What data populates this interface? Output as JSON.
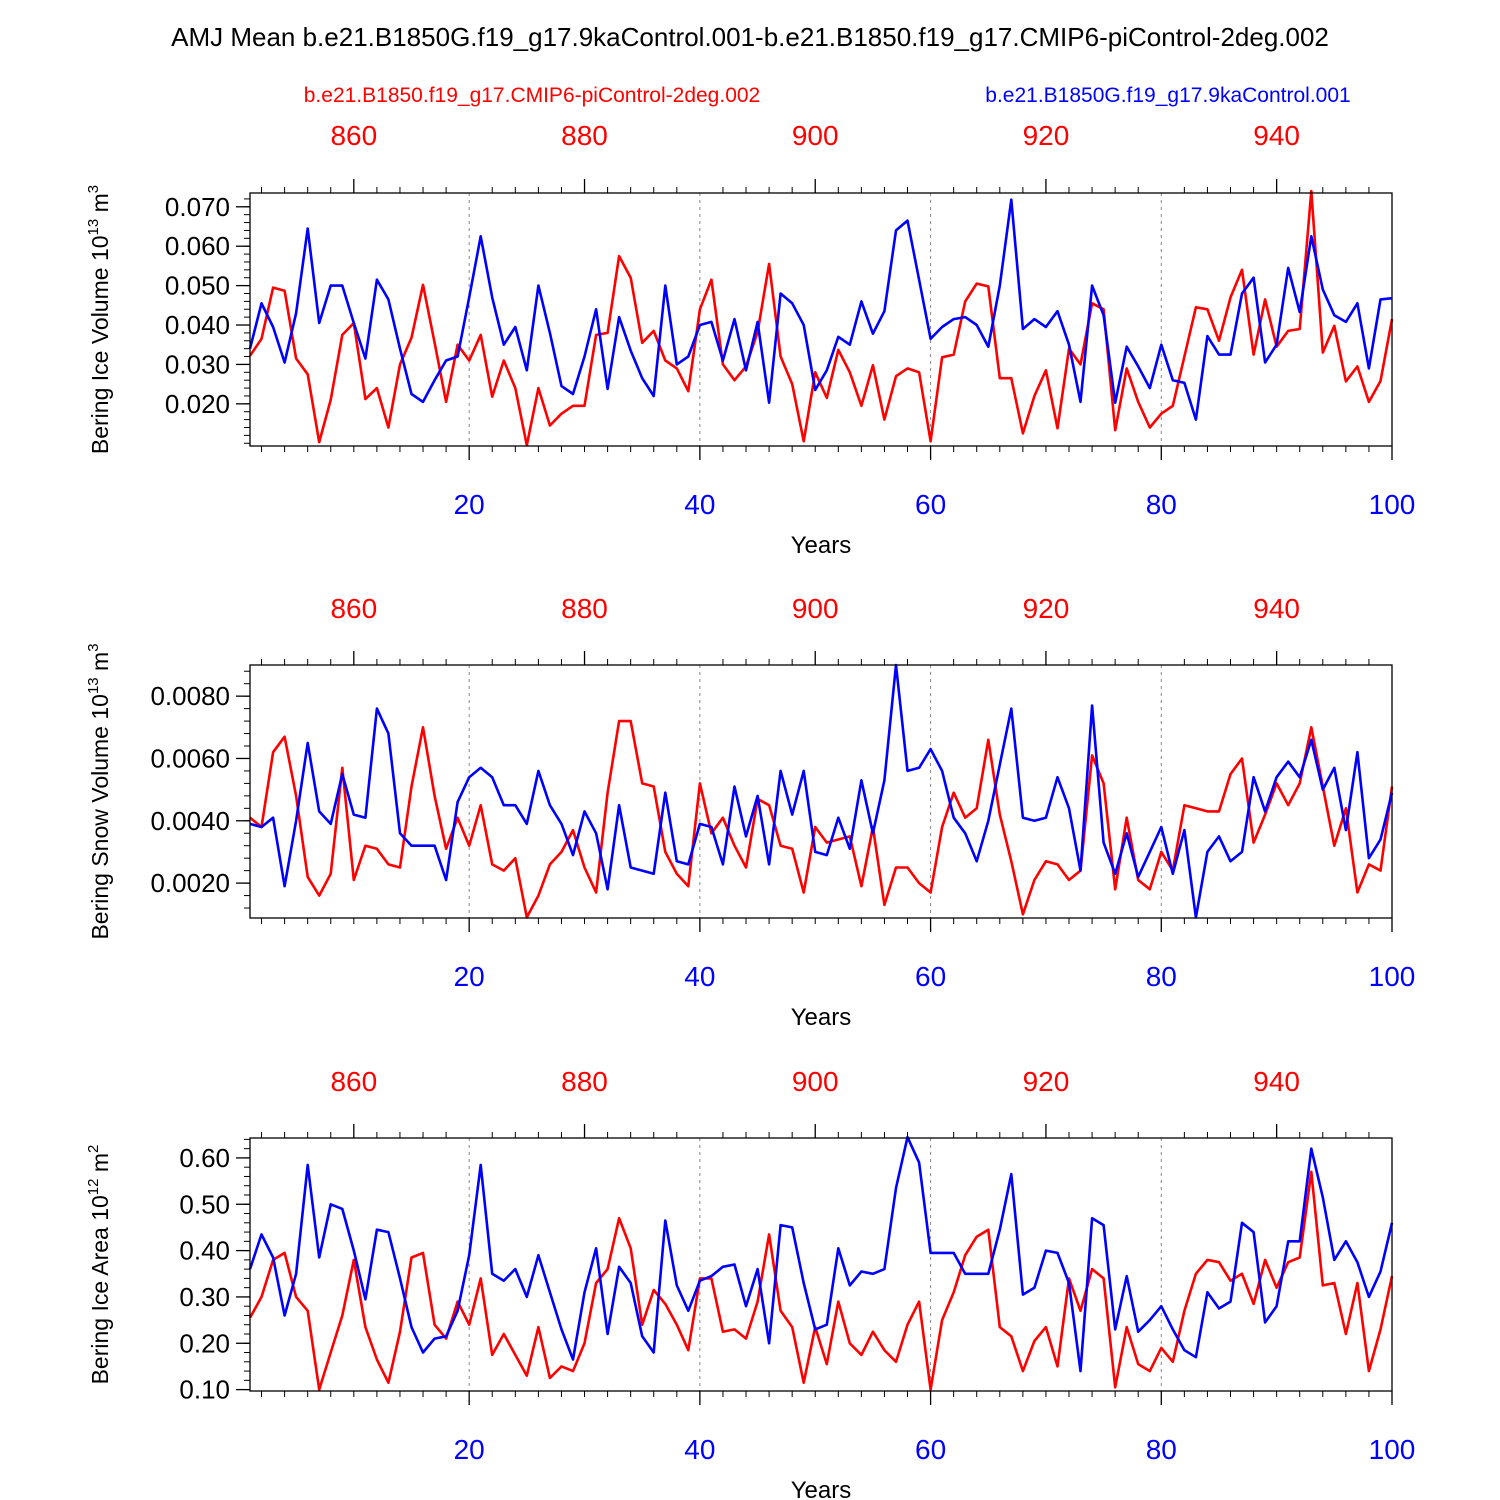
{
  "title": "AMJ Mean b.e21.B1850G.f19_g17.9kaControl.001-b.e21.B1850.f19_g17.CMIP6-piControl-2deg.002",
  "legend": {
    "red_label": "b.e21.B1850.f19_g17.CMIP6-piControl-2deg.002",
    "blue_label": "b.e21.B1850G.f19_g17.9kaControl.001"
  },
  "colors": {
    "red": "#ff0000",
    "blue": "#0000ff",
    "axis": "#000000",
    "grid": "#888888"
  },
  "chart_data": [
    {
      "type": "line",
      "id": "ice_volume",
      "ylabel": "Bering Ice Volume 10",
      "ylabel_sup": "13",
      "ylabel_unit": " m",
      "ylabel_unit_sup": "3",
      "xlabel": "Years",
      "ylim": [
        0.0093,
        0.0735
      ],
      "yticks": [
        0.02,
        0.03,
        0.04,
        0.05,
        0.06,
        0.07
      ],
      "ytick_labels": [
        "0.020",
        "0.030",
        "0.040",
        "0.050",
        "0.060",
        "0.070"
      ],
      "yminor_step": 0.002,
      "xlim": [
        1,
        100
      ],
      "xticks": [
        20,
        40,
        60,
        80,
        100
      ],
      "xtick_labels": [
        "20",
        "40",
        "60",
        "80",
        "100"
      ],
      "top_ticks": [
        10,
        30,
        50,
        70,
        90
      ],
      "top_tick_labels": [
        "860",
        "880",
        "900",
        "920",
        "940"
      ],
      "series": [
        {
          "name": "b.e21.B1850.f19_g17.CMIP6-piControl-2deg.002",
          "color": "red",
          "values": [
            0.0322,
            0.0365,
            0.0495,
            0.0487,
            0.0315,
            0.0275,
            0.0103,
            0.021,
            0.0375,
            0.0405,
            0.0212,
            0.024,
            0.014,
            0.03,
            0.0368,
            0.0502,
            0.0355,
            0.0205,
            0.035,
            0.031,
            0.0375,
            0.0218,
            0.031,
            0.024,
            0.0095,
            0.024,
            0.0145,
            0.0175,
            0.0195,
            0.0195,
            0.0375,
            0.038,
            0.0575,
            0.052,
            0.0355,
            0.0385,
            0.031,
            0.029,
            0.0232,
            0.044,
            0.0515,
            0.03,
            0.026,
            0.0295,
            0.0382,
            0.0555,
            0.032,
            0.025,
            0.0105,
            0.028,
            0.0215,
            0.0337,
            0.028,
            0.0195,
            0.0298,
            0.016,
            0.027,
            0.029,
            0.028,
            0.0105,
            0.0318,
            0.0325,
            0.046,
            0.0505,
            0.0498,
            0.0265,
            0.0265,
            0.0125,
            0.022,
            0.0285,
            0.0138,
            0.034,
            0.03,
            0.0455,
            0.044,
            0.0133,
            0.029,
            0.0205,
            0.014,
            0.0175,
            0.0195,
            0.032,
            0.0445,
            0.044,
            0.036,
            0.047,
            0.054,
            0.0325,
            0.0465,
            0.0345,
            0.0385,
            0.039,
            0.074,
            0.033,
            0.0398,
            0.0257,
            0.0295,
            0.0205,
            0.0258,
            0.0415
          ]
        },
        {
          "name": "b.e21.B1850G.f19_g17.9kaControl.001",
          "color": "blue",
          "values": [
            0.034,
            0.0455,
            0.0395,
            0.0305,
            0.043,
            0.0645,
            0.0405,
            0.05,
            0.05,
            0.0405,
            0.0315,
            0.0515,
            0.0465,
            0.034,
            0.0225,
            0.0205,
            0.026,
            0.031,
            0.032,
            0.047,
            0.0625,
            0.047,
            0.035,
            0.0395,
            0.0285,
            0.05,
            0.038,
            0.0245,
            0.0225,
            0.032,
            0.044,
            0.0238,
            0.042,
            0.0335,
            0.0265,
            0.022,
            0.05,
            0.03,
            0.032,
            0.04,
            0.0408,
            0.031,
            0.0415,
            0.0285,
            0.0408,
            0.0203,
            0.048,
            0.0455,
            0.04,
            0.0235,
            0.0285,
            0.037,
            0.035,
            0.046,
            0.0378,
            0.0435,
            0.064,
            0.0665,
            0.0515,
            0.0365,
            0.0395,
            0.0415,
            0.042,
            0.04,
            0.0345,
            0.05,
            0.0718,
            0.039,
            0.0415,
            0.0395,
            0.0435,
            0.035,
            0.0205,
            0.05,
            0.0425,
            0.0203,
            0.0345,
            0.0295,
            0.024,
            0.035,
            0.026,
            0.0253,
            0.016,
            0.0372,
            0.0325,
            0.0325,
            0.048,
            0.052,
            0.0305,
            0.035,
            0.0545,
            0.0433,
            0.0625,
            0.049,
            0.0425,
            0.0408,
            0.0455,
            0.029,
            0.0465,
            0.0468
          ]
        }
      ]
    },
    {
      "type": "line",
      "id": "snow_volume",
      "ylabel": "Bering Snow Volume 10",
      "ylabel_sup": "13",
      "ylabel_unit": " m",
      "ylabel_unit_sup": "3",
      "xlabel": "Years",
      "ylim": [
        0.00088,
        0.009
      ],
      "yticks": [
        0.002,
        0.004,
        0.006,
        0.008
      ],
      "ytick_labels": [
        "0.0020",
        "0.0040",
        "0.0060",
        "0.0080"
      ],
      "yminor_step": 0.0004,
      "xlim": [
        1,
        100
      ],
      "xticks": [
        20,
        40,
        60,
        80,
        100
      ],
      "xtick_labels": [
        "20",
        "40",
        "60",
        "80",
        "100"
      ],
      "top_ticks": [
        10,
        30,
        50,
        70,
        90
      ],
      "top_tick_labels": [
        "860",
        "880",
        "900",
        "920",
        "940"
      ],
      "series": [
        {
          "name": "b.e21.B1850.f19_g17.CMIP6-piControl-2deg.002",
          "color": "red",
          "values": [
            0.0041,
            0.0038,
            0.0062,
            0.0067,
            0.0048,
            0.0022,
            0.0016,
            0.0023,
            0.0057,
            0.0021,
            0.0032,
            0.0031,
            0.0026,
            0.0025,
            0.0051,
            0.007,
            0.0048,
            0.0031,
            0.0041,
            0.0032,
            0.0045,
            0.0026,
            0.0024,
            0.0028,
            0.0009,
            0.0016,
            0.0026,
            0.003,
            0.0037,
            0.0025,
            0.0017,
            0.0049,
            0.0072,
            0.0072,
            0.0052,
            0.0051,
            0.003,
            0.0023,
            0.0019,
            0.0052,
            0.0036,
            0.0041,
            0.0032,
            0.0025,
            0.0047,
            0.0045,
            0.0032,
            0.0031,
            0.0017,
            0.0038,
            0.0033,
            0.0034,
            0.0035,
            0.0019,
            0.0038,
            0.0013,
            0.0025,
            0.0025,
            0.002,
            0.0017,
            0.0038,
            0.0049,
            0.0041,
            0.0044,
            0.0066,
            0.0042,
            0.0027,
            0.001,
            0.0021,
            0.0027,
            0.0026,
            0.0021,
            0.0024,
            0.0061,
            0.0052,
            0.0018,
            0.0041,
            0.0021,
            0.0018,
            0.003,
            0.0024,
            0.0045,
            0.0044,
            0.0043,
            0.0043,
            0.0055,
            0.006,
            0.0033,
            0.0042,
            0.0052,
            0.0045,
            0.0052,
            0.007,
            0.0051,
            0.0032,
            0.0044,
            0.0017,
            0.0026,
            0.0024,
            0.0051
          ]
        },
        {
          "name": "b.e21.B1850G.f19_g17.9kaControl.001",
          "color": "blue",
          "values": [
            0.0039,
            0.0038,
            0.0041,
            0.0019,
            0.004,
            0.0065,
            0.0043,
            0.0039,
            0.0055,
            0.0042,
            0.0041,
            0.0076,
            0.0068,
            0.0036,
            0.0032,
            0.0032,
            0.0032,
            0.0021,
            0.0046,
            0.0054,
            0.0057,
            0.0054,
            0.0045,
            0.0045,
            0.0039,
            0.0056,
            0.0045,
            0.0039,
            0.0029,
            0.0043,
            0.0036,
            0.0018,
            0.0045,
            0.0025,
            0.0024,
            0.0023,
            0.0049,
            0.0027,
            0.0026,
            0.0039,
            0.0038,
            0.0026,
            0.0051,
            0.0035,
            0.0048,
            0.0026,
            0.0056,
            0.0042,
            0.0056,
            0.003,
            0.0029,
            0.0041,
            0.0031,
            0.0053,
            0.0036,
            0.0053,
            0.009,
            0.0056,
            0.0057,
            0.0063,
            0.0056,
            0.0041,
            0.0036,
            0.0027,
            0.004,
            0.0058,
            0.0076,
            0.0041,
            0.004,
            0.0041,
            0.0054,
            0.0044,
            0.0024,
            0.0077,
            0.0033,
            0.0023,
            0.0036,
            0.0022,
            0.003,
            0.0038,
            0.0023,
            0.0037,
            0.0009,
            0.003,
            0.0035,
            0.0027,
            0.003,
            0.0054,
            0.0043,
            0.0054,
            0.0059,
            0.0054,
            0.0066,
            0.005,
            0.0057,
            0.0037,
            0.0062,
            0.0028,
            0.0034,
            0.0049
          ]
        }
      ]
    },
    {
      "type": "line",
      "id": "ice_area",
      "ylabel": "Bering Ice Area 10",
      "ylabel_sup": "12",
      "ylabel_unit": " m",
      "ylabel_unit_sup": "2",
      "xlabel": "Years",
      "ylim": [
        0.097,
        0.643
      ],
      "yticks": [
        0.1,
        0.2,
        0.3,
        0.4,
        0.5,
        0.6
      ],
      "ytick_labels": [
        "0.10",
        "0.20",
        "0.30",
        "0.40",
        "0.50",
        "0.60"
      ],
      "yminor_step": 0.02,
      "xlim": [
        1,
        100
      ],
      "xticks": [
        20,
        40,
        60,
        80,
        100
      ],
      "xtick_labels": [
        "20",
        "40",
        "60",
        "80",
        "100"
      ],
      "top_ticks": [
        10,
        30,
        50,
        70,
        90
      ],
      "top_tick_labels": [
        "860",
        "880",
        "900",
        "920",
        "940"
      ],
      "series": [
        {
          "name": "b.e21.B1850.f19_g17.CMIP6-piControl-2deg.002",
          "color": "red",
          "values": [
            0.255,
            0.3,
            0.38,
            0.395,
            0.3,
            0.27,
            0.1,
            0.18,
            0.26,
            0.38,
            0.235,
            0.165,
            0.115,
            0.225,
            0.385,
            0.395,
            0.24,
            0.21,
            0.29,
            0.24,
            0.34,
            0.175,
            0.22,
            0.175,
            0.13,
            0.235,
            0.125,
            0.15,
            0.14,
            0.2,
            0.33,
            0.36,
            0.47,
            0.405,
            0.24,
            0.315,
            0.285,
            0.24,
            0.185,
            0.34,
            0.34,
            0.225,
            0.23,
            0.21,
            0.29,
            0.435,
            0.27,
            0.235,
            0.115,
            0.235,
            0.155,
            0.29,
            0.2,
            0.175,
            0.225,
            0.185,
            0.16,
            0.24,
            0.29,
            0.1,
            0.25,
            0.31,
            0.39,
            0.43,
            0.445,
            0.235,
            0.215,
            0.14,
            0.205,
            0.235,
            0.15,
            0.34,
            0.27,
            0.36,
            0.34,
            0.105,
            0.235,
            0.155,
            0.14,
            0.19,
            0.16,
            0.27,
            0.35,
            0.38,
            0.375,
            0.335,
            0.35,
            0.285,
            0.38,
            0.32,
            0.375,
            0.385,
            0.57,
            0.325,
            0.33,
            0.22,
            0.33,
            0.14,
            0.23,
            0.345
          ]
        },
        {
          "name": "b.e21.B1850G.f19_g17.9kaControl.001",
          "color": "blue",
          "values": [
            0.36,
            0.435,
            0.385,
            0.26,
            0.35,
            0.585,
            0.385,
            0.5,
            0.49,
            0.4,
            0.295,
            0.445,
            0.44,
            0.34,
            0.235,
            0.18,
            0.21,
            0.215,
            0.27,
            0.39,
            0.585,
            0.35,
            0.335,
            0.36,
            0.3,
            0.39,
            0.31,
            0.23,
            0.165,
            0.31,
            0.405,
            0.22,
            0.365,
            0.33,
            0.215,
            0.18,
            0.465,
            0.325,
            0.27,
            0.335,
            0.345,
            0.365,
            0.37,
            0.28,
            0.36,
            0.2,
            0.455,
            0.45,
            0.33,
            0.23,
            0.24,
            0.405,
            0.325,
            0.355,
            0.35,
            0.36,
            0.535,
            0.645,
            0.59,
            0.395,
            0.395,
            0.395,
            0.35,
            0.35,
            0.35,
            0.445,
            0.565,
            0.305,
            0.32,
            0.4,
            0.395,
            0.33,
            0.14,
            0.47,
            0.455,
            0.23,
            0.345,
            0.225,
            0.25,
            0.28,
            0.23,
            0.185,
            0.17,
            0.31,
            0.275,
            0.29,
            0.46,
            0.44,
            0.245,
            0.28,
            0.42,
            0.42,
            0.62,
            0.515,
            0.38,
            0.42,
            0.375,
            0.3,
            0.355,
            0.46
          ]
        }
      ]
    }
  ]
}
